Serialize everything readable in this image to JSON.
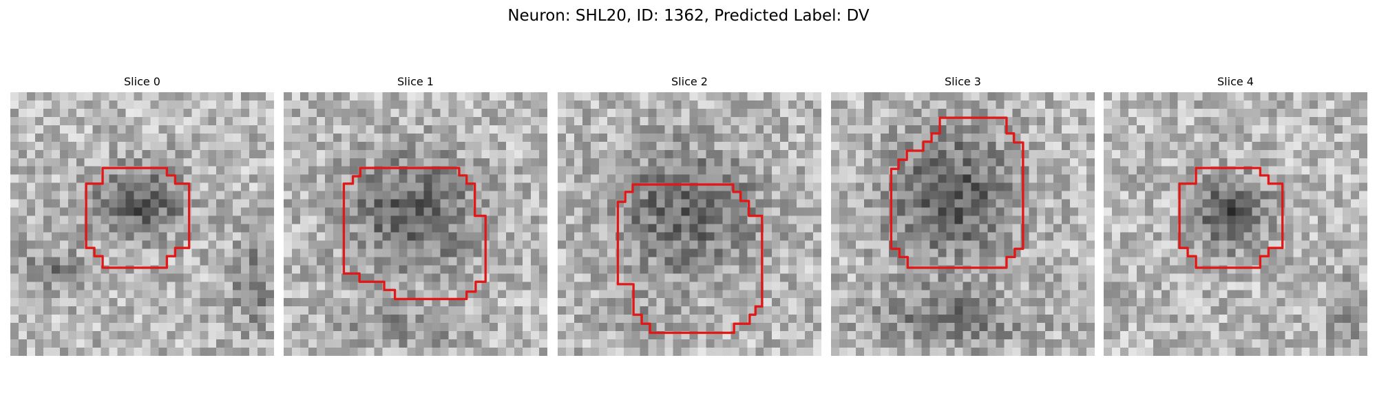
{
  "figure": {
    "title": "Neuron: SHL20, ID: 1362, Predicted Label: DV"
  },
  "panels": [
    {
      "title": "Slice 0"
    },
    {
      "title": "Slice 1"
    },
    {
      "title": "Slice 2"
    },
    {
      "title": "Slice 3"
    },
    {
      "title": "Slice 4"
    }
  ],
  "colors": {
    "contour": "#e01818"
  }
}
